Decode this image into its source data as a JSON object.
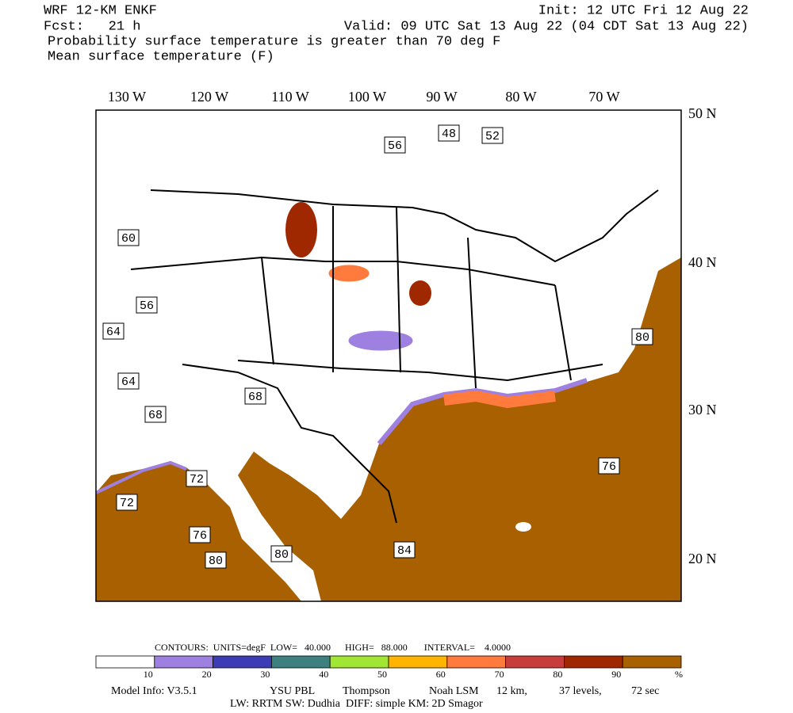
{
  "header": {
    "model": "WRF 12-KM ENKF",
    "forecast": "Fcst:   21 h",
    "init": "Init: 12 UTC Fri 12 Aug 22",
    "valid": "Valid: 09 UTC Sat 13 Aug 22 (04 CDT Sat 13 Aug 22)",
    "field1": "Probability surface temperature is greater than 70 deg F",
    "field2": "Mean surface temperature (F)"
  },
  "map": {
    "longitude_labels": [
      "130 W",
      "120 W",
      "110 W",
      "100 W",
      "90 W",
      "80 W",
      "70 W"
    ],
    "latitude_labels": [
      "50 N",
      "40 N",
      "30 N",
      "20 N"
    ],
    "contour_labels": [
      "48",
      "52",
      "56",
      "60",
      "56",
      "64",
      "80",
      "64",
      "68",
      "68",
      "72",
      "72",
      "76",
      "76",
      "80",
      "80",
      "84"
    ]
  },
  "colorbar": {
    "colors": [
      "#ffffff",
      "#9e80e0",
      "#3c3cb4",
      "#3c8080",
      "#a0e632",
      "#ffb400",
      "#ff7a3c",
      "#c83c3c",
      "#a02800",
      "#a86000"
    ],
    "ticks": [
      10,
      20,
      30,
      40,
      50,
      60,
      70,
      80,
      90
    ],
    "unit": "%"
  },
  "footer": {
    "contours": "CONTOURS:  UNITS=degF  LOW=   40.000      HIGH=   88.000       INTERVAL=    4.0000",
    "model_info": "Model Info: V3.5.1",
    "pbl": "YSU PBL",
    "mp": "Thompson",
    "lsm": "Noah LSM",
    "dx": "12 km,",
    "levels": "37 levels,",
    "dt": "72 sec",
    "physics": "LW: RRTM SW: Dudhia  DIFF: simple KM: 2D Smagor"
  }
}
